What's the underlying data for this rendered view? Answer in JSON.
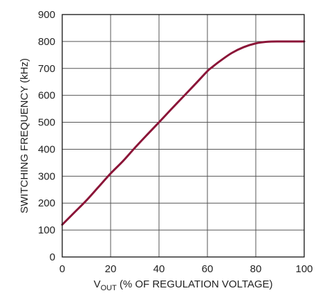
{
  "chart_data": {
    "type": "line",
    "title": "",
    "xlabel_main": "V",
    "xlabel_sub": "OUT",
    "xlabel_rest": " (% OF REGULATION VOLTAGE)",
    "ylabel": "SWITCHING FREQUENCY (kHz)",
    "xlim": [
      0,
      100
    ],
    "ylim": [
      0,
      900
    ],
    "x_ticks": [
      "0",
      "20",
      "40",
      "60",
      "80",
      "100"
    ],
    "y_ticks": [
      "0",
      "100",
      "200",
      "300",
      "400",
      "500",
      "600",
      "700",
      "800",
      "900"
    ],
    "grid": true,
    "line_color": "#8b1538",
    "series": [
      {
        "x": [
          0,
          5,
          10,
          15,
          20,
          25,
          30,
          35,
          40,
          45,
          50,
          55,
          60,
          62,
          65,
          70,
          75,
          80,
          85,
          90,
          95,
          100
        ],
        "y": [
          120,
          165,
          210,
          260,
          310,
          355,
          405,
          453,
          500,
          548,
          595,
          642,
          690,
          705,
          726,
          757,
          779,
          793,
          799,
          800,
          800,
          800
        ]
      }
    ]
  }
}
